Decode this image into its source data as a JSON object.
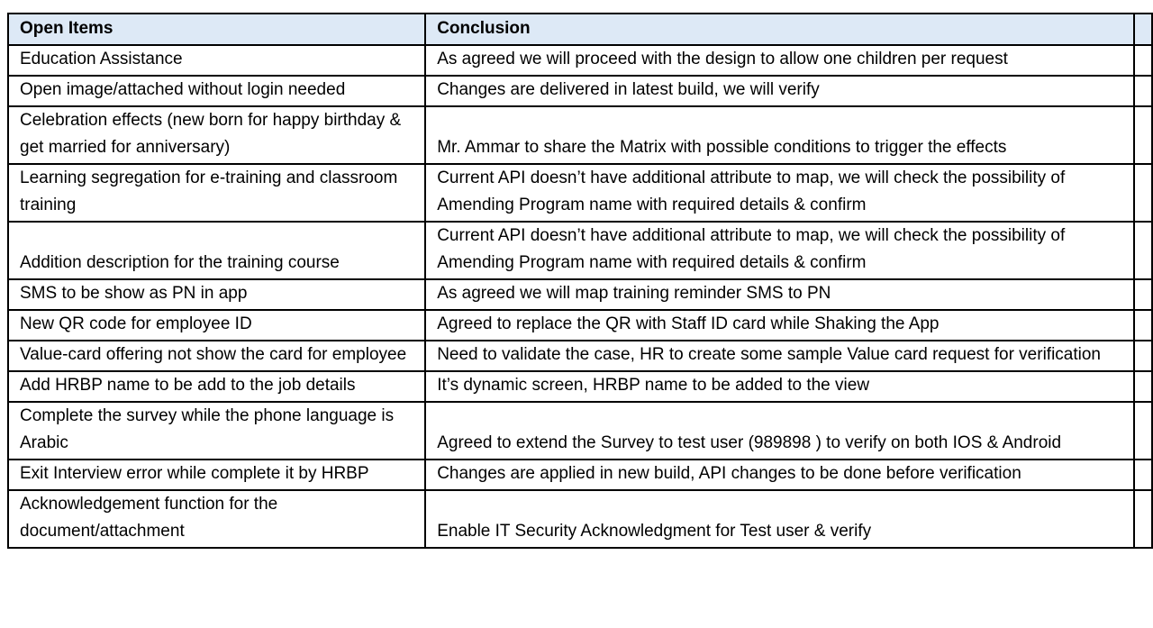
{
  "table": {
    "headers": [
      "Open Items",
      "Conclusion"
    ],
    "header_bg": "#dde9f6",
    "rows": [
      {
        "item": "Education Assistance",
        "conclusion": "As agreed we will proceed with the design to allow one children per request"
      },
      {
        "item": "Open image/attached without login needed",
        "conclusion": "Changes are delivered in latest build, we will verify"
      },
      {
        "item": "Celebration effects (new born for happy birthday & get married for anniversary)",
        "conclusion": "Mr. Ammar to share the Matrix with possible conditions to trigger the effects"
      },
      {
        "item": "Learning segregation for e-training and classroom training",
        "conclusion": "Current API doesn’t have additional attribute to map, we will check the possibility of Amending Program name with required details & confirm"
      },
      {
        "item": "Addition description for the training course",
        "conclusion": "Current API doesn’t have additional attribute to map, we will check the possibility of Amending Program name with required details & confirm"
      },
      {
        "item": "SMS to be show as PN in app",
        "conclusion": "As agreed we will map training reminder SMS to PN"
      },
      {
        "item": "New QR code for employee ID",
        "conclusion": "Agreed to replace the QR with Staff ID card while Shaking the App"
      },
      {
        "item": "Value-card offering not show the card for employee",
        "conclusion": "Need to validate the case, HR to create some sample Value card request for verification"
      },
      {
        "item": "Add HRBP name to be add to the job details",
        "conclusion": "It’s dynamic screen, HRBP name to be added to the view"
      },
      {
        "item": "Complete the survey while the phone language is Arabic",
        "conclusion": "Agreed to extend the Survey to test user (989898 ) to verify on both IOS & Android"
      },
      {
        "item": "Exit Interview error while complete it by HRBP",
        "conclusion": "Changes are applied in new build, API changes to be done before verification"
      },
      {
        "item": "Acknowledgement function for the document/attachment",
        "conclusion": "Enable IT Security Acknowledgment for Test user & verify"
      }
    ]
  }
}
